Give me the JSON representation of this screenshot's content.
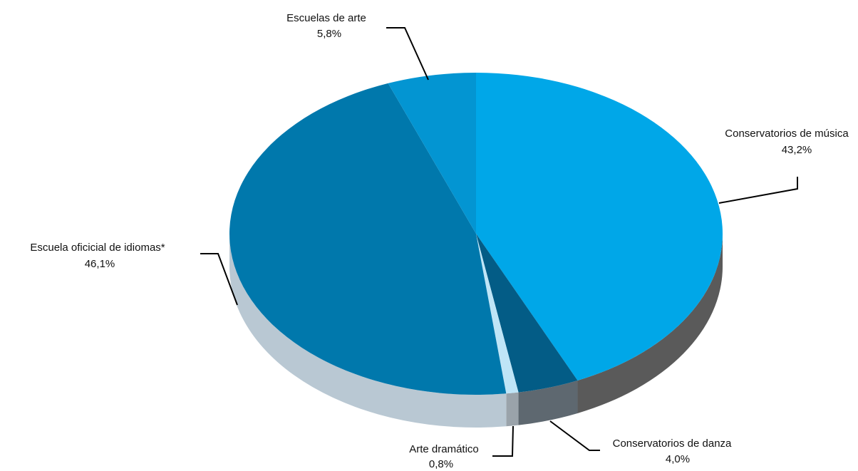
{
  "chart_data": {
    "type": "pie",
    "title": "",
    "slices": [
      {
        "label": "Conservatorios de música",
        "value": 43.2,
        "display": "43,2%",
        "color": "#00a7e8",
        "side_color": "#5a5a5a"
      },
      {
        "label": "Conservatorios de danza",
        "value": 4.0,
        "display": "4,0%",
        "color": "#035c86",
        "side_color": "#5e6870"
      },
      {
        "label": "Arte dramático",
        "value": 0.8,
        "display": "0,8%",
        "color": "#bfe5f7",
        "side_color": "#9aa3aa"
      },
      {
        "label": "Escuela oficicial de idiomas*",
        "value": 46.1,
        "display": "46,1%",
        "color": "#0078ac",
        "side_color": "#b9c8d3"
      },
      {
        "label": "Escuelas de arte",
        "value": 5.8,
        "display": "5,8%",
        "color": "#0395d2",
        "side_color": "#b9c8d3"
      }
    ],
    "legend": "none",
    "style": "3d"
  }
}
